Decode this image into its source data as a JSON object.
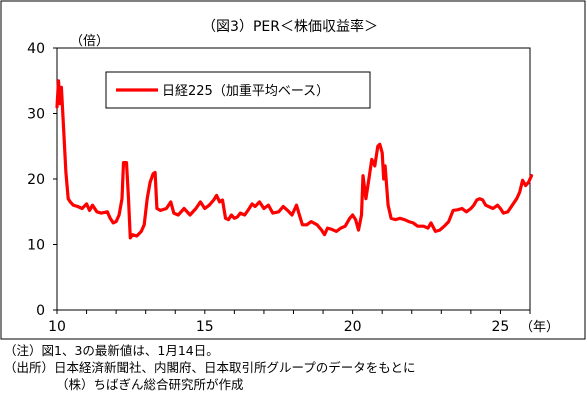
{
  "chart_data": {
    "type": "line",
    "title": "（図3）PER＜株価収益率＞",
    "y_unit_label": "（倍）",
    "x_unit_label": "（年）",
    "ylim": [
      0,
      40
    ],
    "y_ticks": [
      "0",
      "10",
      "20",
      "30",
      "40"
    ],
    "xlim": [
      2010,
      2026
    ],
    "x_ticks": [
      {
        "value": 2010,
        "label": "10"
      },
      {
        "value": 2015,
        "label": "15"
      },
      {
        "value": 2020,
        "label": "20"
      },
      {
        "value": 2025,
        "label": "25"
      }
    ],
    "grid": false,
    "legend_position": "top-center",
    "series": [
      {
        "name": "日経225（加重平均ベース）",
        "color": "#ff0000",
        "points": [
          [
            2010.0,
            31.0
          ],
          [
            2010.05,
            35.0
          ],
          [
            2010.1,
            31.5
          ],
          [
            2010.15,
            34.0
          ],
          [
            2010.22,
            28.0
          ],
          [
            2010.3,
            21.0
          ],
          [
            2010.38,
            17.0
          ],
          [
            2010.45,
            16.5
          ],
          [
            2010.55,
            16.0
          ],
          [
            2010.7,
            15.8
          ],
          [
            2010.85,
            15.5
          ],
          [
            2011.0,
            16.2
          ],
          [
            2011.1,
            15.2
          ],
          [
            2011.2,
            16.0
          ],
          [
            2011.35,
            15.0
          ],
          [
            2011.5,
            14.8
          ],
          [
            2011.7,
            15.0
          ],
          [
            2011.8,
            14.0
          ],
          [
            2011.9,
            13.3
          ],
          [
            2012.0,
            13.5
          ],
          [
            2012.1,
            14.5
          ],
          [
            2012.2,
            17.0
          ],
          [
            2012.25,
            22.5
          ],
          [
            2012.35,
            22.5
          ],
          [
            2012.42,
            17.0
          ],
          [
            2012.48,
            11.0
          ],
          [
            2012.55,
            11.5
          ],
          [
            2012.7,
            11.3
          ],
          [
            2012.85,
            12.0
          ],
          [
            2012.95,
            13.0
          ],
          [
            2013.05,
            17.0
          ],
          [
            2013.15,
            19.5
          ],
          [
            2013.25,
            20.8
          ],
          [
            2013.32,
            21.0
          ],
          [
            2013.38,
            15.5
          ],
          [
            2013.5,
            15.2
          ],
          [
            2013.7,
            15.5
          ],
          [
            2013.85,
            16.5
          ],
          [
            2013.95,
            14.8
          ],
          [
            2014.1,
            14.5
          ],
          [
            2014.3,
            15.5
          ],
          [
            2014.5,
            14.5
          ],
          [
            2014.7,
            15.5
          ],
          [
            2014.85,
            16.5
          ],
          [
            2015.0,
            15.5
          ],
          [
            2015.15,
            16.0
          ],
          [
            2015.3,
            16.8
          ],
          [
            2015.4,
            17.5
          ],
          [
            2015.5,
            16.5
          ],
          [
            2015.6,
            16.8
          ],
          [
            2015.7,
            14.0
          ],
          [
            2015.8,
            13.8
          ],
          [
            2015.9,
            14.5
          ],
          [
            2016.0,
            14.0
          ],
          [
            2016.1,
            14.2
          ],
          [
            2016.2,
            14.8
          ],
          [
            2016.35,
            14.5
          ],
          [
            2016.5,
            15.5
          ],
          [
            2016.6,
            16.2
          ],
          [
            2016.7,
            15.8
          ],
          [
            2016.85,
            16.5
          ],
          [
            2017.0,
            15.5
          ],
          [
            2017.15,
            16.0
          ],
          [
            2017.3,
            14.8
          ],
          [
            2017.5,
            15.0
          ],
          [
            2017.65,
            15.8
          ],
          [
            2017.8,
            15.2
          ],
          [
            2017.95,
            14.5
          ],
          [
            2018.1,
            16.0
          ],
          [
            2018.2,
            14.5
          ],
          [
            2018.3,
            13.0
          ],
          [
            2018.45,
            13.0
          ],
          [
            2018.6,
            13.5
          ],
          [
            2018.8,
            13.0
          ],
          [
            2018.95,
            12.2
          ],
          [
            2019.05,
            11.5
          ],
          [
            2019.15,
            12.5
          ],
          [
            2019.3,
            12.3
          ],
          [
            2019.45,
            12.0
          ],
          [
            2019.6,
            12.5
          ],
          [
            2019.75,
            12.8
          ],
          [
            2019.9,
            14.0
          ],
          [
            2020.0,
            14.5
          ],
          [
            2020.1,
            13.8
          ],
          [
            2020.2,
            12.2
          ],
          [
            2020.3,
            14.5
          ],
          [
            2020.35,
            20.5
          ],
          [
            2020.45,
            17.0
          ],
          [
            2020.55,
            20.0
          ],
          [
            2020.65,
            23.0
          ],
          [
            2020.75,
            22.0
          ],
          [
            2020.85,
            25.0
          ],
          [
            2020.92,
            25.3
          ],
          [
            2021.0,
            24.0
          ],
          [
            2021.05,
            20.0
          ],
          [
            2021.1,
            22.0
          ],
          [
            2021.2,
            16.0
          ],
          [
            2021.3,
            14.0
          ],
          [
            2021.45,
            13.8
          ],
          [
            2021.6,
            14.0
          ],
          [
            2021.75,
            13.8
          ],
          [
            2021.9,
            13.5
          ],
          [
            2022.05,
            13.3
          ],
          [
            2022.2,
            12.8
          ],
          [
            2022.4,
            12.8
          ],
          [
            2022.55,
            12.5
          ],
          [
            2022.65,
            13.3
          ],
          [
            2022.8,
            12.0
          ],
          [
            2022.95,
            12.2
          ],
          [
            2023.1,
            12.8
          ],
          [
            2023.25,
            13.5
          ],
          [
            2023.4,
            15.2
          ],
          [
            2023.55,
            15.3
          ],
          [
            2023.7,
            15.5
          ],
          [
            2023.85,
            15.0
          ],
          [
            2024.0,
            15.5
          ],
          [
            2024.1,
            16.0
          ],
          [
            2024.2,
            16.8
          ],
          [
            2024.3,
            17.0
          ],
          [
            2024.4,
            16.8
          ],
          [
            2024.5,
            16.0
          ],
          [
            2024.6,
            15.8
          ],
          [
            2024.75,
            15.5
          ],
          [
            2024.9,
            16.0
          ],
          [
            2025.0,
            15.5
          ],
          [
            2025.1,
            14.8
          ],
          [
            2025.25,
            15.0
          ],
          [
            2025.4,
            16.0
          ],
          [
            2025.55,
            17.0
          ],
          [
            2025.65,
            18.0
          ],
          [
            2025.75,
            19.8
          ],
          [
            2025.85,
            19.0
          ],
          [
            2025.95,
            19.5
          ],
          [
            2026.0,
            20.0
          ],
          [
            2026.05,
            20.5
          ]
        ]
      }
    ]
  },
  "notes": {
    "note1": "（注）図1、3の最新値は、1月14日。",
    "source1": "（出所）日本経済新聞社、内閣府、日本取引所グループのデータをもとに",
    "source2": "（株）ちばぎん総合研究所が作成"
  }
}
